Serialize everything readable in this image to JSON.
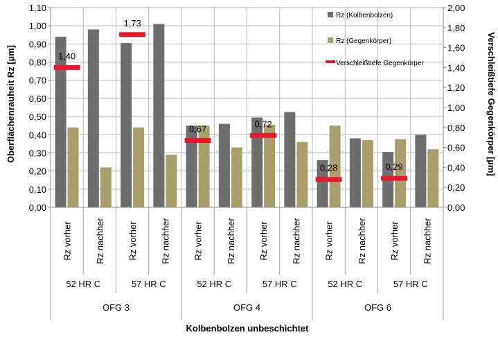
{
  "chart_data": {
    "type": "bar",
    "xlabel": "Kolbenbolzen unbeschichtet",
    "ylabel": "Oberflächenrauheit Rz [µm]",
    "y2label": "Verschleißtiefe Gegenkörper [µm]",
    "ylim": [
      0,
      1.1
    ],
    "y2lim": [
      0,
      2.0
    ],
    "yticks": [
      "0,00",
      "0,10",
      "0,20",
      "0,30",
      "0,40",
      "0,50",
      "0,60",
      "0,70",
      "0,80",
      "0,90",
      "1,00",
      "1,10"
    ],
    "y2ticks": [
      "0,00",
      "0,20",
      "0,40",
      "0,60",
      "0,80",
      "1,00",
      "1,20",
      "1,40",
      "1,60",
      "1,80",
      "2,00"
    ],
    "grid": true,
    "legend_position": "top-right",
    "categories": [
      "Rz vorher",
      "Rz nachher",
      "Rz vorher",
      "Rz nachher",
      "Rz vorher",
      "Rz nachher",
      "Rz vorher",
      "Rz nachher",
      "Rz vorher",
      "Rz nachher",
      "Rz vorher",
      "Rz nachher"
    ],
    "hardness_groups": [
      "52 HR C",
      "57 HR C",
      "52 HR C",
      "57 HR C",
      "52 HR C",
      "57 HR C"
    ],
    "ofg_groups": [
      "OFG 3",
      "OFG 4",
      "OFG 6"
    ],
    "series": [
      {
        "name": "Rz (Kolbenbolzen)",
        "axis": "left",
        "color": "#6e6e6e",
        "values": [
          0.94,
          0.98,
          0.905,
          1.01,
          0.45,
          0.46,
          0.495,
          0.525,
          0.26,
          0.38,
          0.305,
          0.4
        ]
      },
      {
        "name": "Rz (Gegenkörper)",
        "axis": "left",
        "color": "#a99f6a",
        "values": [
          0.44,
          0.22,
          0.44,
          0.29,
          0.45,
          0.33,
          0.455,
          0.36,
          0.45,
          0.37,
          0.375,
          0.32
        ]
      },
      {
        "name": "Verschleißtiefe Gegenkörper",
        "axis": "right",
        "color": "#e8192c",
        "values": [
          1.4,
          null,
          1.73,
          null,
          0.67,
          null,
          0.72,
          null,
          0.28,
          null,
          0.29,
          null
        ],
        "labels": [
          "1,40",
          null,
          "1,73",
          null,
          "0,67",
          null,
          "0,72",
          null,
          "0,28",
          null,
          "0,29",
          null
        ]
      }
    ]
  }
}
